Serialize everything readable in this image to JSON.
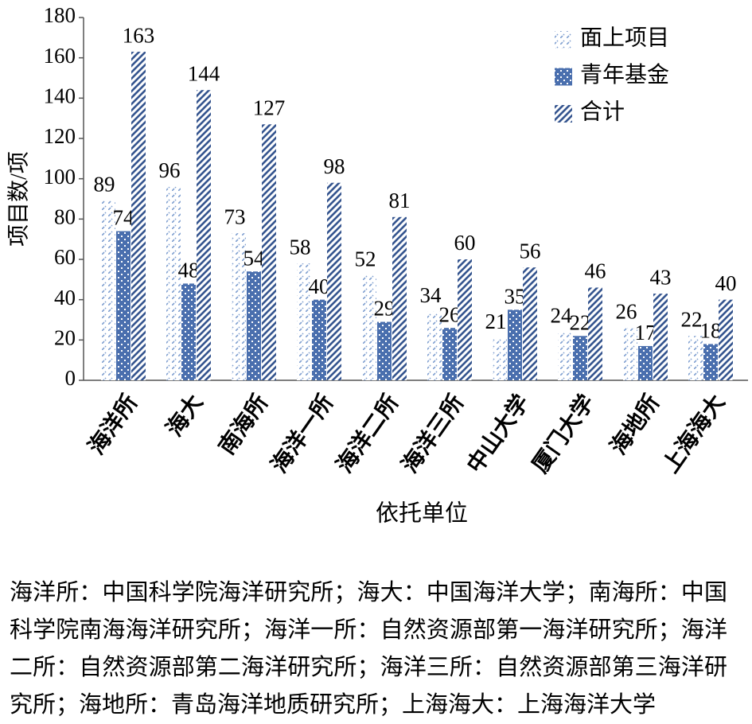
{
  "chart_data": {
    "type": "bar",
    "categories": [
      "海洋所",
      "海大",
      "南海所",
      "海洋一所",
      "海洋二所",
      "海洋三所",
      "中山大学",
      "厦门大学",
      "海地所",
      "上海海大"
    ],
    "series": [
      {
        "name": "面上项目",
        "color": "#7f9fd0",
        "values": [
          89,
          96,
          73,
          58,
          52,
          34,
          21,
          24,
          26,
          22
        ]
      },
      {
        "name": "青年基金",
        "color": "#4a6fae",
        "values": [
          74,
          48,
          54,
          40,
          29,
          26,
          35,
          22,
          17,
          18
        ]
      },
      {
        "name": "合计",
        "color": "#35558f",
        "values": [
          163,
          144,
          127,
          98,
          81,
          60,
          56,
          46,
          43,
          40
        ]
      }
    ],
    "xlabel": "依托单位",
    "ylabel": "项目数/项",
    "ylim": [
      0,
      180
    ],
    "yticks": [
      0,
      20,
      40,
      60,
      80,
      100,
      120,
      140,
      160,
      180
    ],
    "legend": "top-right"
  },
  "note": "海洋所：中国科学院海洋研究所；海大：中国海洋大学；南海所：中国科学院南海海洋研究所；海洋一所：自然资源部第一海洋研究所；海洋二所：自然资源部第二海洋研究所；海洋三所：自然资源部第三海洋研究所；海地所：青岛海洋地质研究所；上海海大：上海海洋大学"
}
